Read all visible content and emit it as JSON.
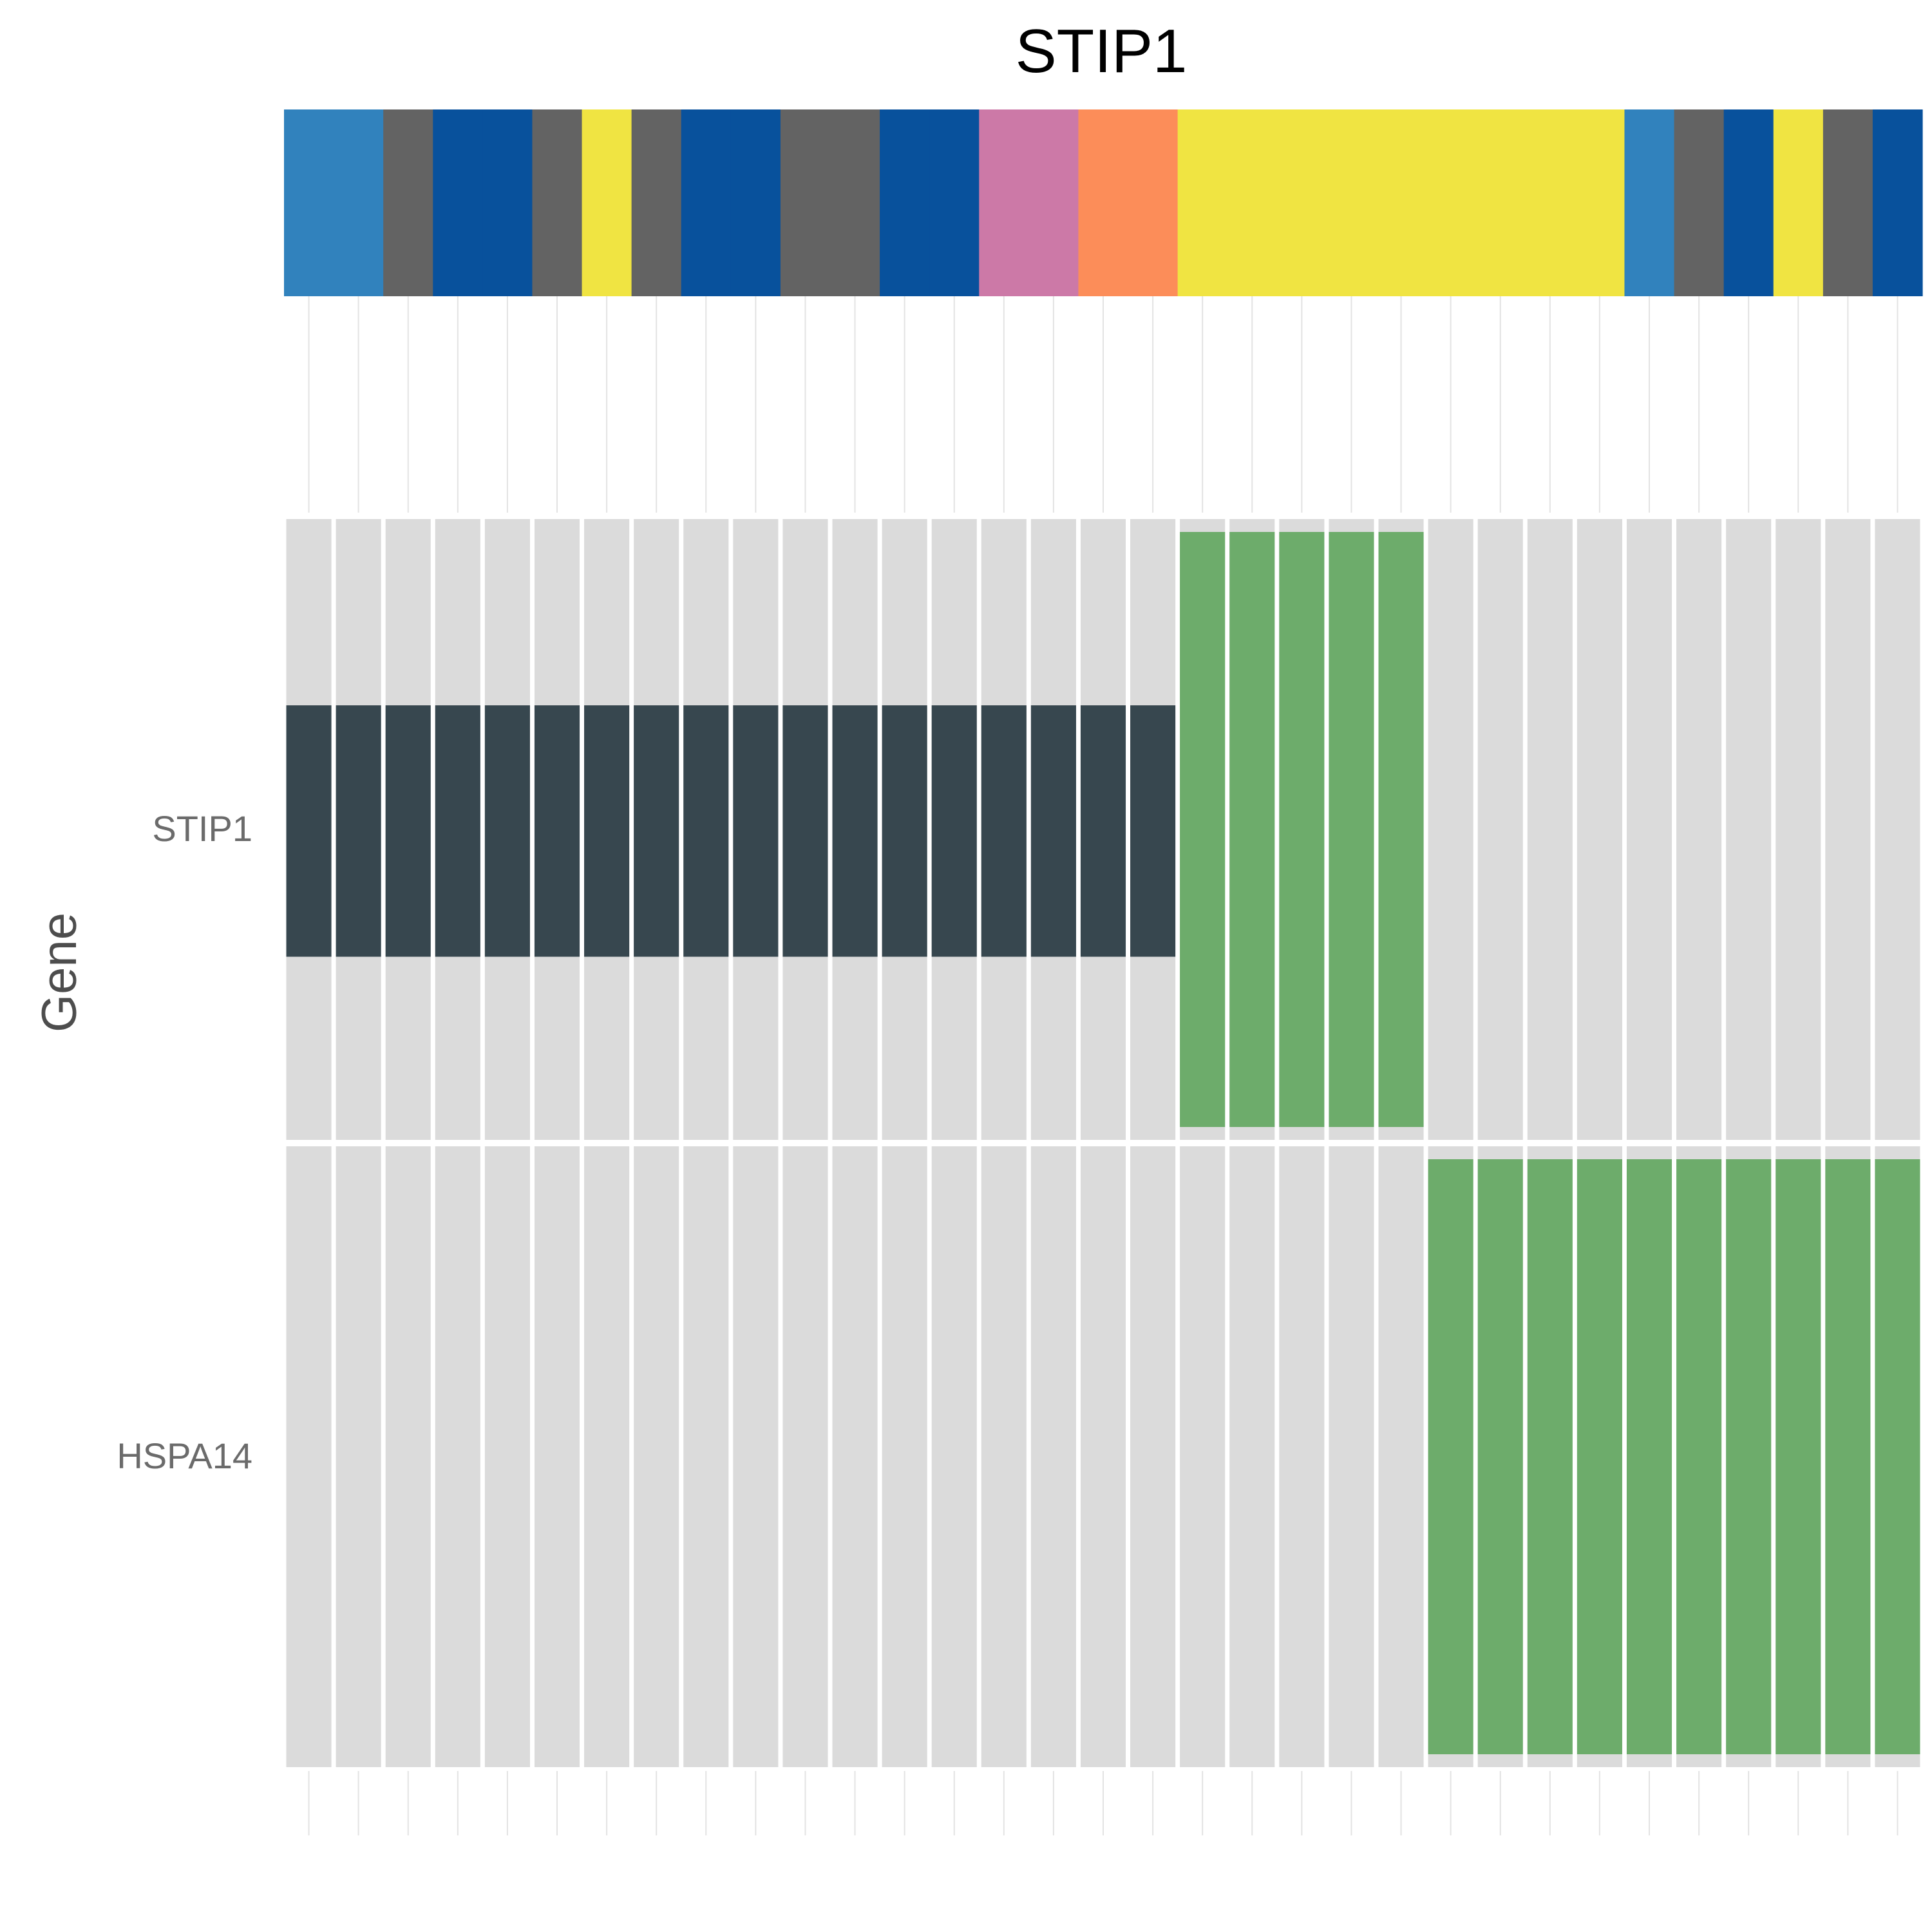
{
  "chart_data": {
    "type": "heatmap",
    "title": "STIP1",
    "ylabel": "Gene",
    "sample_count": 33,
    "annotation_colors": [
      "#3182bd",
      "#3182bd",
      "#636363",
      "#08519c",
      "#08519c",
      "#636363",
      "#f0e442",
      "#636363",
      "#08519c",
      "#08519c",
      "#636363",
      "#636363",
      "#08519c",
      "#08519c",
      "#cc79a7",
      "#cc79a7",
      "#fc8d59",
      "#fc8d59",
      "#f0e442",
      "#f0e442",
      "#f0e442",
      "#f0e442",
      "#f0e442",
      "#f0e442",
      "#f0e442",
      "#f0e442",
      "#f0e442",
      "#3182bd",
      "#636363",
      "#08519c",
      "#f0e442",
      "#636363",
      "#08519c"
    ],
    "genes": [
      {
        "name": "STIP1",
        "alteration_start": 0,
        "alterations": [
          "dark",
          "dark",
          "dark",
          "dark",
          "dark",
          "dark",
          "dark",
          "dark",
          "dark",
          "dark",
          "dark",
          "dark",
          "dark",
          "dark",
          "dark",
          "dark",
          "dark",
          "dark",
          "green",
          "green",
          "green",
          "green",
          "green",
          "none",
          "none",
          "none",
          "none",
          "none",
          "none",
          "none",
          "none",
          "none",
          "none"
        ]
      },
      {
        "name": "HSPA14",
        "alteration_start": 0,
        "alterations": [
          "none",
          "none",
          "none",
          "none",
          "none",
          "none",
          "none",
          "none",
          "none",
          "none",
          "none",
          "none",
          "none",
          "none",
          "none",
          "none",
          "none",
          "none",
          "none",
          "none",
          "none",
          "none",
          "none",
          "green",
          "green",
          "green",
          "green",
          "green",
          "green",
          "green",
          "green",
          "green",
          "green"
        ]
      }
    ],
    "colors": {
      "cell_background": "#dbdbdb",
      "dark_alteration": "#37474f",
      "green_alteration": "#6dac6b",
      "grid_line": "#e3e3e3"
    },
    "grid": true,
    "legend": "none"
  }
}
